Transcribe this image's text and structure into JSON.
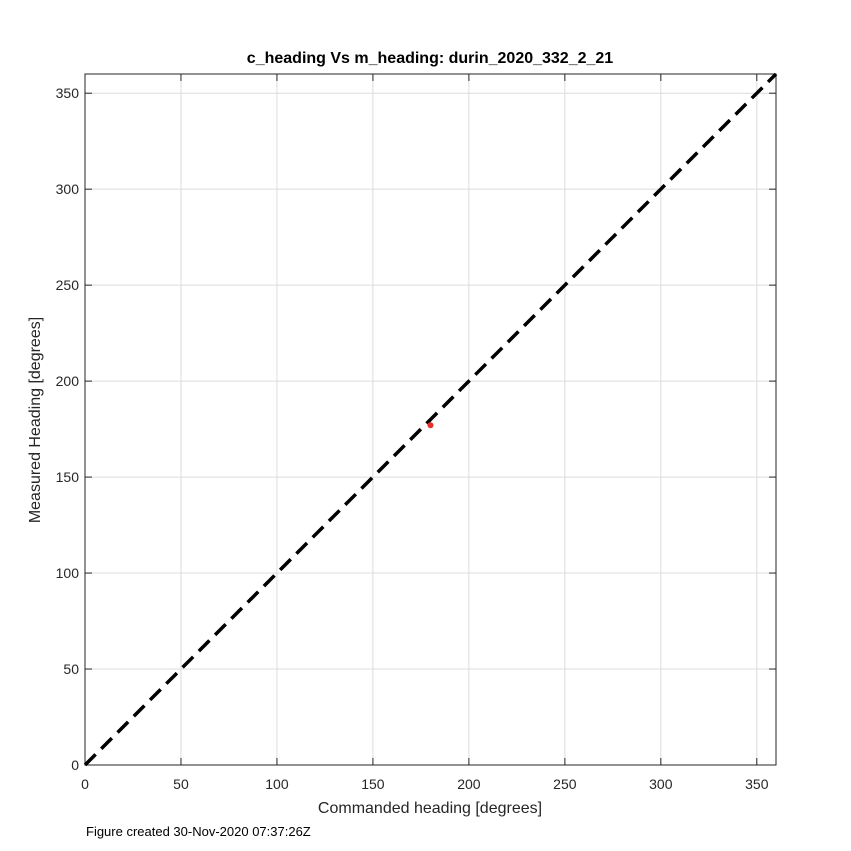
{
  "chart_data": {
    "type": "scatter",
    "title": "c_heading Vs m_heading: durin_2020_332_2_21",
    "xlabel": "Commanded heading [degrees]",
    "ylabel": "Measured Heading [degrees]",
    "xlim": [
      0,
      360
    ],
    "ylim": [
      0,
      360
    ],
    "xticks": [
      0,
      50,
      100,
      150,
      200,
      250,
      300,
      350
    ],
    "yticks": [
      0,
      50,
      100,
      150,
      200,
      250,
      300,
      350
    ],
    "grid": true,
    "series": [
      {
        "points": [
          [
            180,
            177
          ]
        ],
        "color": "#e8302a"
      }
    ],
    "reference_line": {
      "from": [
        0,
        0
      ],
      "to": [
        360,
        360
      ],
      "style": "dashed",
      "color": "#000000"
    }
  },
  "footer": "Figure created 30-Nov-2020 07:37:26Z"
}
